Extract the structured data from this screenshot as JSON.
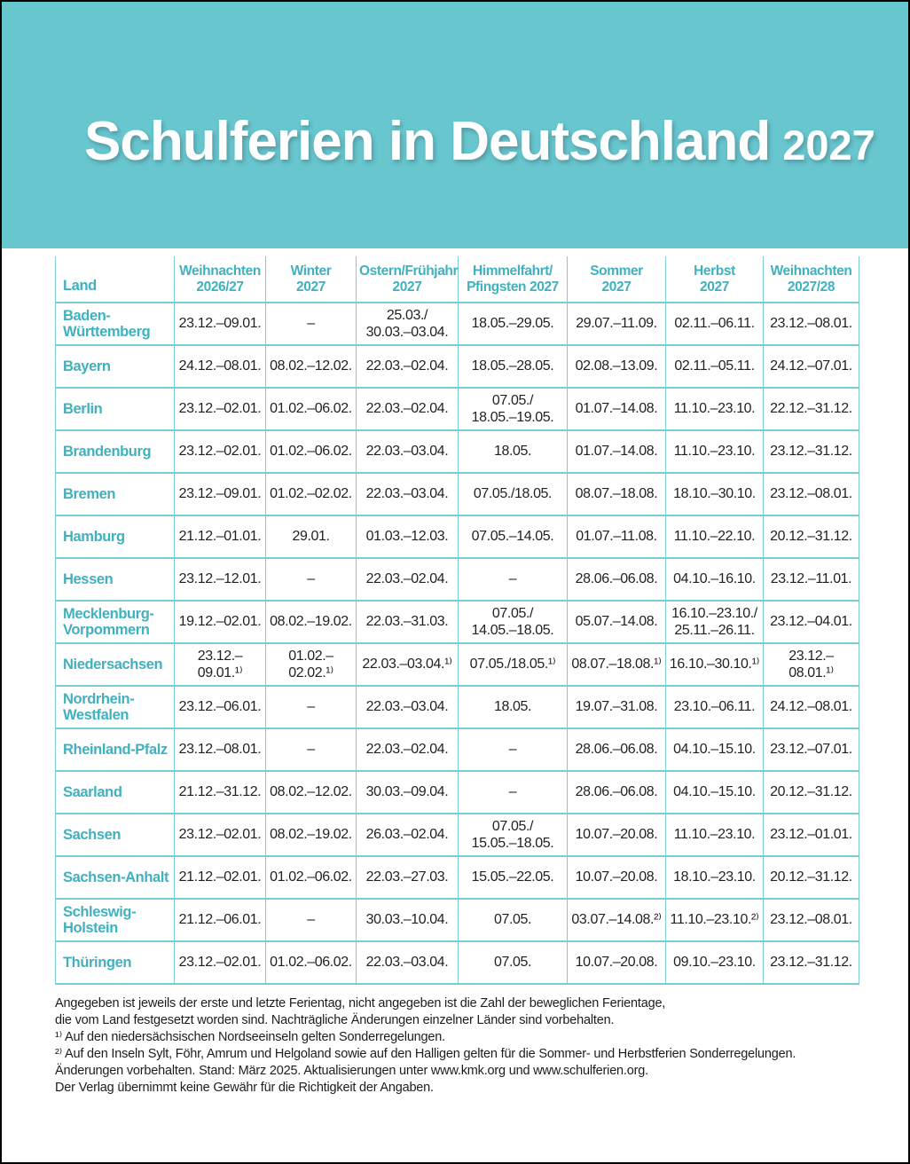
{
  "header": {
    "title": "Schulferien in Deutschland",
    "year": "2027"
  },
  "colors": {
    "banner_background": "#68c6cf",
    "grid_line": "#7fcbd3",
    "accent_text": "#3fb1bf",
    "body_text": "#221f1f"
  },
  "table": {
    "columns": [
      "Land",
      "Weihnachten\n2026/27",
      "Winter\n2027",
      "Ostern/Frühjahr\n2027",
      "Himmelfahrt/\nPfingsten 2027",
      "Sommer\n2027",
      "Herbst\n2027",
      "Weihnachten\n2027/28"
    ],
    "rows": [
      {
        "land": "Baden-\nWürttemberg",
        "cells": [
          "23.12.–09.01.",
          "–",
          "25.03./\n30.03.–03.04.",
          "18.05.–29.05.",
          "29.07.–11.09.",
          "02.11.–06.11.",
          "23.12.–08.01."
        ]
      },
      {
        "land": "Bayern",
        "cells": [
          "24.12.–08.01.",
          "08.02.–12.02.",
          "22.03.–02.04.",
          "18.05.–28.05.",
          "02.08.–13.09.",
          "02.11.–05.11.",
          "24.12.–07.01."
        ]
      },
      {
        "land": "Berlin",
        "cells": [
          "23.12.–02.01.",
          "01.02.–06.02.",
          "22.03.–02.04.",
          "07.05./\n18.05.–19.05.",
          "01.07.–14.08.",
          "11.10.–23.10.",
          "22.12.–31.12."
        ]
      },
      {
        "land": "Brandenburg",
        "cells": [
          "23.12.–02.01.",
          "01.02.–06.02.",
          "22.03.–03.04.",
          "18.05.",
          "01.07.–14.08.",
          "11.10.–23.10.",
          "23.12.–31.12."
        ]
      },
      {
        "land": "Bremen",
        "cells": [
          "23.12.–09.01.",
          "01.02.–02.02.",
          "22.03.–03.04.",
          "07.05./18.05.",
          "08.07.–18.08.",
          "18.10.–30.10.",
          "23.12.–08.01."
        ]
      },
      {
        "land": "Hamburg",
        "cells": [
          "21.12.–01.01.",
          "29.01.",
          "01.03.–12.03.",
          "07.05.–14.05.",
          "01.07.–11.08.",
          "11.10.–22.10.",
          "20.12.–31.12."
        ]
      },
      {
        "land": "Hessen",
        "cells": [
          "23.12.–12.01.",
          "–",
          "22.03.–02.04.",
          "–",
          "28.06.–06.08.",
          "04.10.–16.10.",
          "23.12.–11.01."
        ]
      },
      {
        "land": "Mecklenburg-\nVorpommern",
        "cells": [
          "19.12.–02.01.",
          "08.02.–19.02.",
          "22.03.–31.03.",
          "07.05./\n14.05.–18.05.",
          "05.07.–14.08.",
          "16.10.–23.10./\n25.11.–26.11.",
          "23.12.–04.01."
        ]
      },
      {
        "land": "Niedersachsen",
        "cells": [
          "23.12.–09.01.¹⁾",
          "01.02.–02.02.¹⁾",
          "22.03.–03.04.¹⁾",
          "07.05./18.05.¹⁾",
          "08.07.–18.08.¹⁾",
          "16.10.–30.10.¹⁾",
          "23.12.–08.01.¹⁾"
        ]
      },
      {
        "land": "Nordrhein-\nWestfalen",
        "cells": [
          "23.12.–06.01.",
          "–",
          "22.03.–03.04.",
          "18.05.",
          "19.07.–31.08.",
          "23.10.–06.11.",
          "24.12.–08.01."
        ]
      },
      {
        "land": "Rheinland-Pfalz",
        "cells": [
          "23.12.–08.01.",
          "–",
          "22.03.–02.04.",
          "–",
          "28.06.–06.08.",
          "04.10.–15.10.",
          "23.12.–07.01."
        ]
      },
      {
        "land": "Saarland",
        "cells": [
          "21.12.–31.12.",
          "08.02.–12.02.",
          "30.03.–09.04.",
          "–",
          "28.06.–06.08.",
          "04.10.–15.10.",
          "20.12.–31.12."
        ]
      },
      {
        "land": "Sachsen",
        "cells": [
          "23.12.–02.01.",
          "08.02.–19.02.",
          "26.03.–02.04.",
          "07.05./\n15.05.–18.05.",
          "10.07.–20.08.",
          "11.10.–23.10.",
          "23.12.–01.01."
        ]
      },
      {
        "land": "Sachsen-Anhalt",
        "cells": [
          "21.12.–02.01.",
          "01.02.–06.02.",
          "22.03.–27.03.",
          "15.05.–22.05.",
          "10.07.–20.08.",
          "18.10.–23.10.",
          "20.12.–31.12."
        ]
      },
      {
        "land": "Schleswig-\nHolstein",
        "cells": [
          "21.12.–06.01.",
          "–",
          "30.03.–10.04.",
          "07.05.",
          "03.07.–14.08.²⁾",
          "11.10.–23.10.²⁾",
          "23.12.–08.01."
        ]
      },
      {
        "land": "Thüringen",
        "cells": [
          "23.12.–02.01.",
          "01.02.–06.02.",
          "22.03.–03.04.",
          "07.05.",
          "10.07.–20.08.",
          "09.10.–23.10.",
          "23.12.–31.12."
        ]
      }
    ]
  },
  "notes": [
    "Angegeben ist jeweils der erste und letzte Ferientag, nicht angegeben ist die Zahl der beweglichen Ferientage,",
    "die vom Land festgesetzt worden sind. Nachträgliche Änderungen einzelner Länder sind vorbehalten.",
    "¹⁾ Auf den niedersächsischen Nordseeinseln gelten Sonderregelungen.",
    "²⁾ Auf den Inseln Sylt, Föhr, Amrum und Helgoland sowie auf den Halligen gelten für die Sommer- und Herbstferien Sonderregelungen.",
    "Änderungen vorbehalten. Stand: März 2025. Aktualisierungen unter www.kmk.org und www.schulferien.org.",
    "Der Verlag übernimmt keine Gewähr für die Richtigkeit der Angaben."
  ]
}
